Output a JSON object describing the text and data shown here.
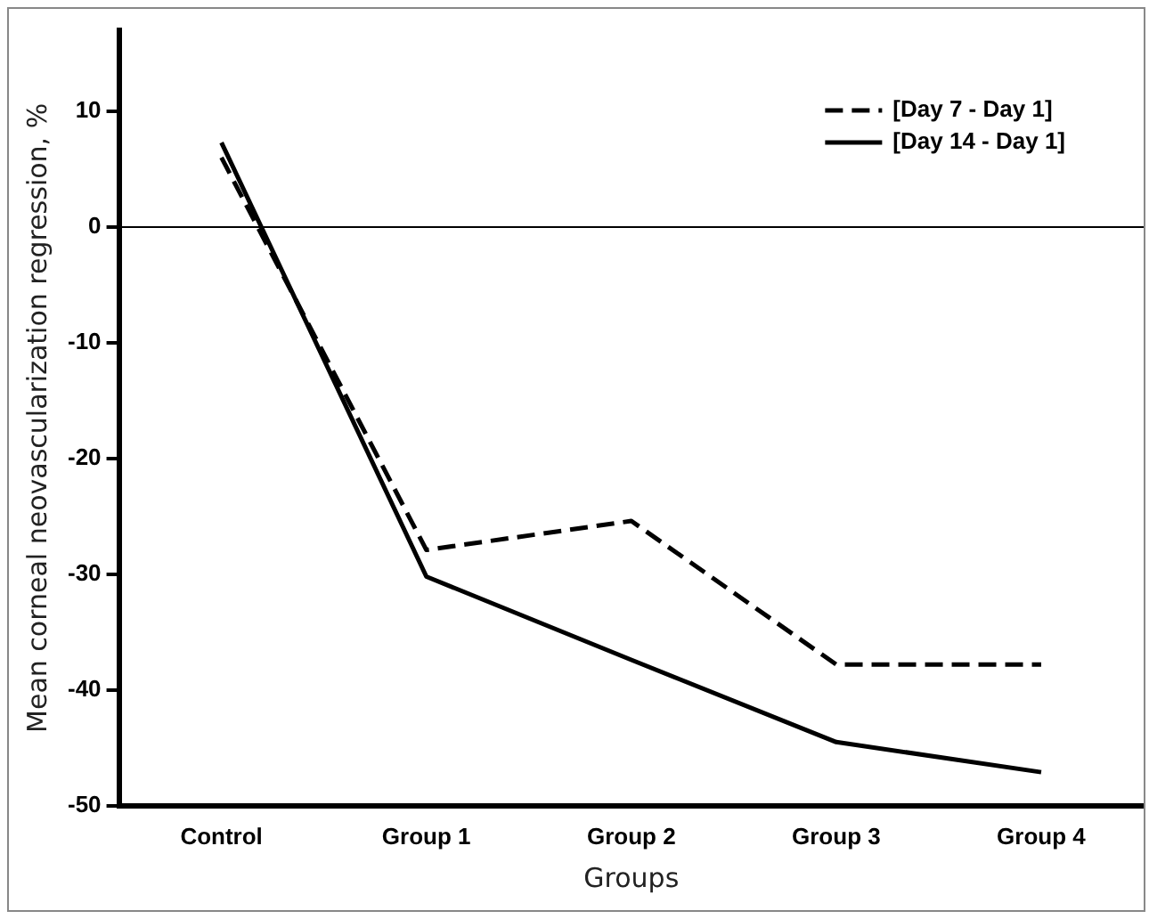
{
  "chart_data": {
    "type": "line",
    "xlabel": "Groups",
    "ylabel": "Mean corneal neovascularization regression, %",
    "categories": [
      "Control",
      "Group 1",
      "Group 2",
      "Group 3",
      "Group 4"
    ],
    "series": [
      {
        "name": "[Day 7 - Day 1]",
        "color": "#000000",
        "line_style": "dashed",
        "values": [
          6,
          -27.9,
          -25.4,
          -37.8,
          -37.8
        ]
      },
      {
        "name": "[Day 14 - Day 1]",
        "color": "#000000",
        "line_style": "solid",
        "values": [
          7.3,
          -30.2,
          -37.4,
          -44.5,
          -47.1
        ]
      }
    ],
    "ylim": [
      -50,
      17
    ],
    "yticks": [
      10,
      0,
      -10,
      -20,
      -30,
      -40,
      -50
    ],
    "ref_lines": [
      {
        "axis": "y",
        "value": 0,
        "color": "#000000"
      }
    ],
    "grid": false,
    "legend": "top right",
    "marker": "none"
  }
}
